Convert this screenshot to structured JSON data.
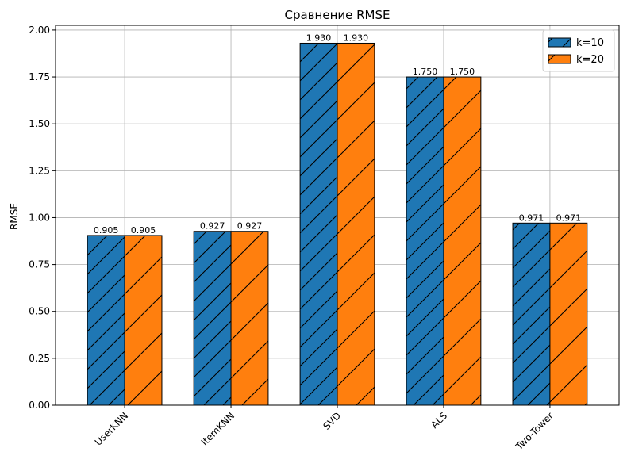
{
  "chart_data": {
    "type": "bar",
    "title": "Сравнение RMSE",
    "xlabel": "",
    "ylabel": "RMSE",
    "categories": [
      "UserKNN",
      "ItemKNN",
      "SVD",
      "ALS",
      "Two-Tower"
    ],
    "series": [
      {
        "name": "k=10",
        "values": [
          0.905,
          0.927,
          1.93,
          1.75,
          0.971
        ],
        "value_labels": [
          "0.905",
          "0.927",
          "1.930",
          "1.750",
          "0.971"
        ],
        "color": "#1f77b4",
        "hatch": "//"
      },
      {
        "name": "k=20",
        "values": [
          0.905,
          0.927,
          1.93,
          1.75,
          0.971
        ],
        "value_labels": [
          "0.905",
          "0.927",
          "1.930",
          "1.750",
          "0.971"
        ],
        "color": "#ff7f0e",
        "hatch": "/"
      }
    ],
    "ylim": [
      0,
      2.025
    ],
    "yticks": [
      0.0,
      0.25,
      0.5,
      0.75,
      1.0,
      1.25,
      1.5,
      1.75,
      2.0
    ],
    "ytick_labels": [
      "0.00",
      "0.25",
      "0.50",
      "0.75",
      "1.00",
      "1.25",
      "1.50",
      "1.75",
      "2.00"
    ],
    "grid": true,
    "legend_position": "top-right",
    "xtick_rotation": 45
  }
}
